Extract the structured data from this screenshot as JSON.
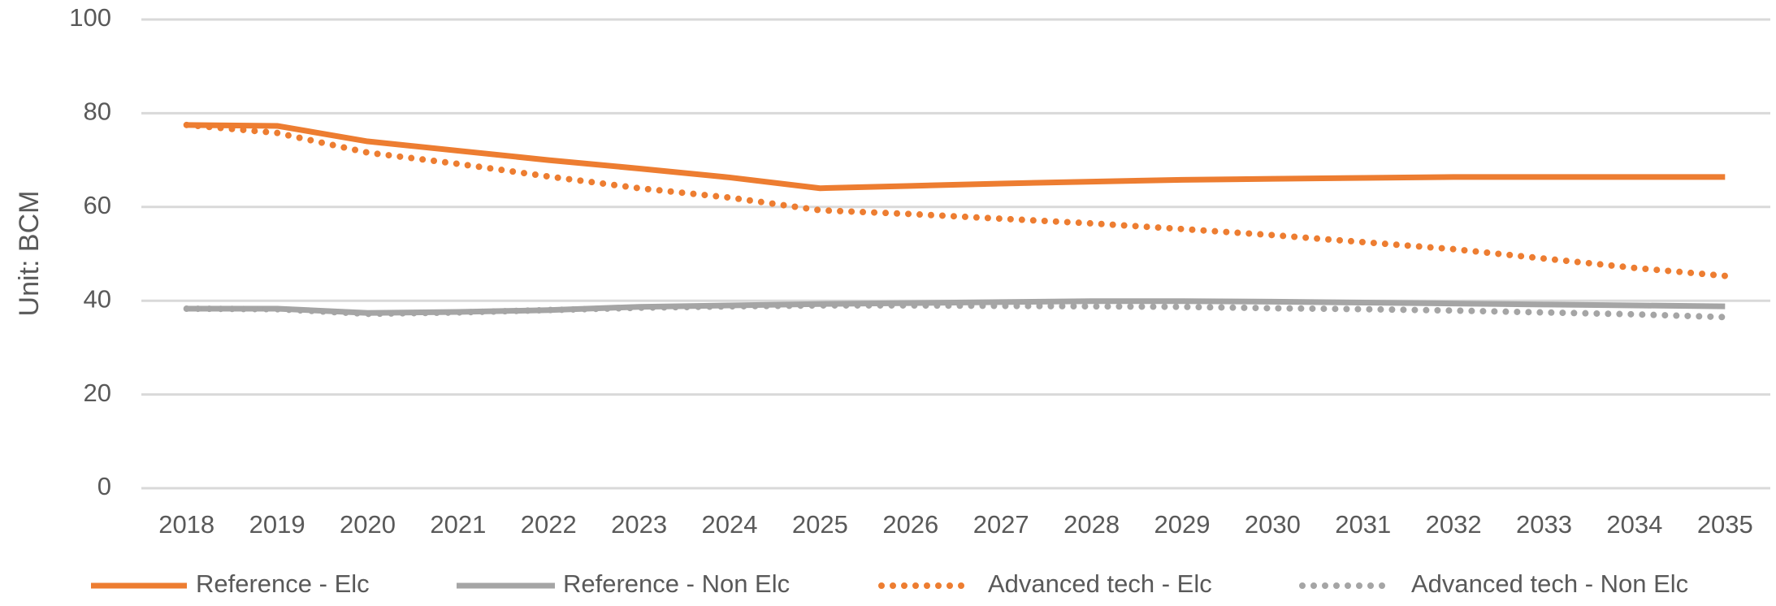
{
  "chart_data": {
    "type": "line",
    "y_label": "Unit: BCM",
    "categories": [
      "2018",
      "2019",
      "2020",
      "2021",
      "2022",
      "2023",
      "2024",
      "2025",
      "2026",
      "2027",
      "2028",
      "2029",
      "2030",
      "2031",
      "2032",
      "2033",
      "2034",
      "2035"
    ],
    "series": [
      {
        "name": "Reference - Elc",
        "color": "#ed7d31",
        "style": "solid",
        "values": [
          77.5,
          77.3,
          74,
          72,
          70,
          68.2,
          66.3,
          64,
          64.5,
          65,
          65.4,
          65.8,
          66,
          66.2,
          66.4,
          66.4,
          66.4,
          66.4
        ]
      },
      {
        "name": "Reference - Non Elc",
        "color": "#a5a5a5",
        "style": "solid",
        "values": [
          38.3,
          38.3,
          37.4,
          37.6,
          38,
          38.7,
          39,
          39.3,
          39.5,
          39.7,
          39.9,
          39.9,
          39.8,
          39.6,
          39.4,
          39.2,
          39,
          38.8
        ]
      },
      {
        "name": "Advanced tech - Elc",
        "color": "#ed7d31",
        "style": "dotted",
        "values": [
          77.5,
          75.8,
          71.6,
          69.2,
          66.5,
          64,
          62,
          59.3,
          58.5,
          57.5,
          56.5,
          55.3,
          54,
          52.5,
          51,
          49,
          47,
          45.3
        ]
      },
      {
        "name": "Advanced tech - Non Elc",
        "color": "#a5a5a5",
        "style": "dotted",
        "values": [
          38.3,
          38.2,
          37.2,
          37.5,
          38,
          38.5,
          38.8,
          39,
          39,
          38.9,
          38.8,
          38.7,
          38.4,
          38.2,
          37.9,
          37.5,
          37.1,
          36.5
        ]
      }
    ],
    "ylim": [
      0,
      100
    ],
    "yticks": [
      0,
      20,
      40,
      60,
      80,
      100
    ],
    "grid": true,
    "legend": "bottom"
  }
}
